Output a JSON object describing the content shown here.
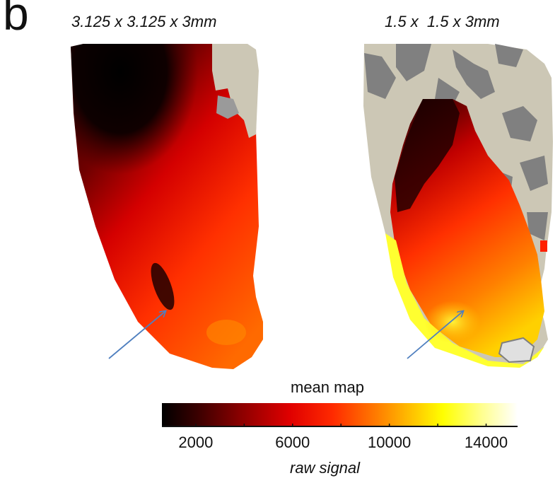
{
  "panel": {
    "letter": "b"
  },
  "maps": [
    {
      "resolution": "3.125 x 3.125 x 3mm"
    },
    {
      "resolution": "1.5 x  1.5 x 3mm"
    }
  ],
  "colorbar": {
    "title": "mean map",
    "axis_label": "raw signal",
    "colormap": "hot",
    "range": [
      600,
      15300
    ],
    "tick_values": [
      2000,
      4000,
      6000,
      8000,
      10000,
      12000,
      14000
    ],
    "tick_labels": [
      {
        "value": 2000,
        "text": "2000"
      },
      {
        "value": 6000,
        "text": "6000"
      },
      {
        "value": 10000,
        "text": "10000"
      },
      {
        "value": 14000,
        "text": "14000"
      }
    ]
  },
  "colors": {
    "arrow": "#4f7fbf",
    "cortex_light": "#ccc7b5",
    "cortex_dark": "#7f7f7f",
    "hot_dark": "#000000",
    "hot_red": "#ff1a00",
    "hot_orange": "#ff8a00",
    "hot_yellow": "#ffff00",
    "hot_white": "#ffffff"
  }
}
